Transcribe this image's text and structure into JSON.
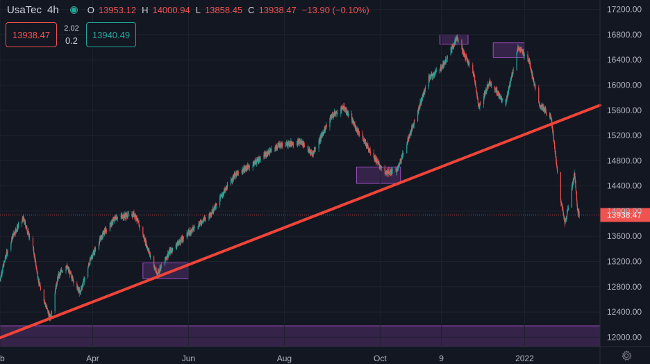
{
  "header": {
    "symbol": "UsaTec",
    "timeframe": "4h",
    "open_label": "O",
    "open": "13953.12",
    "high_label": "H",
    "high": "14000.94",
    "low_label": "L",
    "low": "13858.45",
    "close_label": "C",
    "close": "13938.47",
    "change": "−13.90 (−0.10%)"
  },
  "trade": {
    "sell_price": "13938.47",
    "spread_top": "2.02",
    "quantity": "0.2",
    "buy_price": "13940.49"
  },
  "colors": {
    "background": "#131722",
    "up": "#26a69a",
    "down": "#ef5350",
    "trendline": "#f04438",
    "zone": "#7e3d9e",
    "price_line": "#ef5350"
  },
  "icons": [
    "live-status-icon",
    "gear-icon"
  ],
  "chart_data": {
    "type": "candlestick",
    "title": "",
    "y_axis_side": "right",
    "ylim": [
      11850,
      17350
    ],
    "y_ticks": [
      "17200.00",
      "16800.00",
      "16400.00",
      "16000.00",
      "15600.00",
      "15200.00",
      "14800.00",
      "14400.00",
      "14000.00",
      "13600.00",
      "13200.00",
      "12800.00",
      "12400.00",
      "12000.00"
    ],
    "y_tick_values": [
      17200,
      16800,
      16400,
      16000,
      15600,
      15200,
      14800,
      14400,
      14000,
      13600,
      13200,
      12800,
      12400,
      12000
    ],
    "x_ticks": [
      {
        "label": "eb",
        "date": "2021-02-01"
      },
      {
        "label": "Apr",
        "date": "2021-04-01"
      },
      {
        "label": "Jun",
        "date": "2021-06-01"
      },
      {
        "label": "Aug",
        "date": "2021-08-01"
      },
      {
        "label": "Oct",
        "date": "2021-10-01"
      },
      {
        "label": "9",
        "date": "2021-11-09"
      },
      {
        "label": "2022",
        "date": "2022-01-01"
      }
    ],
    "xlim": [
      "2021-02-01",
      "2022-02-18"
    ],
    "current_price": 13938.47,
    "current_price_label": "13938.47",
    "trendline": {
      "start": {
        "date": "2021-02-01",
        "price": 11990
      },
      "end": {
        "date": "2022-02-18",
        "price": 15680
      }
    },
    "zones": [
      {
        "from": "2021-02-01",
        "to": "2022-02-18",
        "low": 11850,
        "high": 12180
      },
      {
        "from": "2021-05-03",
        "to": "2021-06-01",
        "low": 12930,
        "high": 13180
      },
      {
        "from": "2021-09-16",
        "to": "2021-10-14",
        "low": 14440,
        "high": 14700
      },
      {
        "from": "2021-11-08",
        "to": "2021-11-26",
        "low": 16650,
        "high": 16800
      },
      {
        "from": "2021-12-12",
        "to": "2022-01-01",
        "low": 16440,
        "high": 16670
      }
    ],
    "path_points": [
      {
        "date": "2021-02-01",
        "price": 12900
      },
      {
        "date": "2021-02-05",
        "price": 13300
      },
      {
        "date": "2021-02-10",
        "price": 13650
      },
      {
        "date": "2021-02-16",
        "price": 13880
      },
      {
        "date": "2021-02-22",
        "price": 13450
      },
      {
        "date": "2021-02-26",
        "price": 12850
      },
      {
        "date": "2021-03-05",
        "price": 12300
      },
      {
        "date": "2021-03-10",
        "price": 12950
      },
      {
        "date": "2021-03-15",
        "price": 13150
      },
      {
        "date": "2021-03-24",
        "price": 12700
      },
      {
        "date": "2021-03-31",
        "price": 13250
      },
      {
        "date": "2021-04-08",
        "price": 13650
      },
      {
        "date": "2021-04-16",
        "price": 13900
      },
      {
        "date": "2021-04-28",
        "price": 13950
      },
      {
        "date": "2021-05-05",
        "price": 13500
      },
      {
        "date": "2021-05-12",
        "price": 13000
      },
      {
        "date": "2021-05-20",
        "price": 13350
      },
      {
        "date": "2021-06-01",
        "price": 13650
      },
      {
        "date": "2021-06-15",
        "price": 13950
      },
      {
        "date": "2021-06-30",
        "price": 14550
      },
      {
        "date": "2021-07-15",
        "price": 14800
      },
      {
        "date": "2021-07-29",
        "price": 15050
      },
      {
        "date": "2021-08-12",
        "price": 15100
      },
      {
        "date": "2021-08-19",
        "price": 14900
      },
      {
        "date": "2021-08-31",
        "price": 15500
      },
      {
        "date": "2021-09-08",
        "price": 15650
      },
      {
        "date": "2021-09-20",
        "price": 15150
      },
      {
        "date": "2021-10-04",
        "price": 14600
      },
      {
        "date": "2021-10-12",
        "price": 14650
      },
      {
        "date": "2021-10-22",
        "price": 15350
      },
      {
        "date": "2021-11-01",
        "price": 16100
      },
      {
        "date": "2021-11-10",
        "price": 16300
      },
      {
        "date": "2021-11-19",
        "price": 16750
      },
      {
        "date": "2021-11-30",
        "price": 16150
      },
      {
        "date": "2021-12-03",
        "price": 15650
      },
      {
        "date": "2021-12-10",
        "price": 16050
      },
      {
        "date": "2021-12-20",
        "price": 15700
      },
      {
        "date": "2021-12-28",
        "price": 16600
      },
      {
        "date": "2022-01-04",
        "price": 16400
      },
      {
        "date": "2022-01-10",
        "price": 15700
      },
      {
        "date": "2022-01-18",
        "price": 15500
      },
      {
        "date": "2022-01-24",
        "price": 14200
      },
      {
        "date": "2022-01-27",
        "price": 13800
      },
      {
        "date": "2022-02-02",
        "price": 14600
      },
      {
        "date": "2022-02-04",
        "price": 14000
      },
      {
        "date": "2022-02-05",
        "price": 13940
      }
    ]
  }
}
